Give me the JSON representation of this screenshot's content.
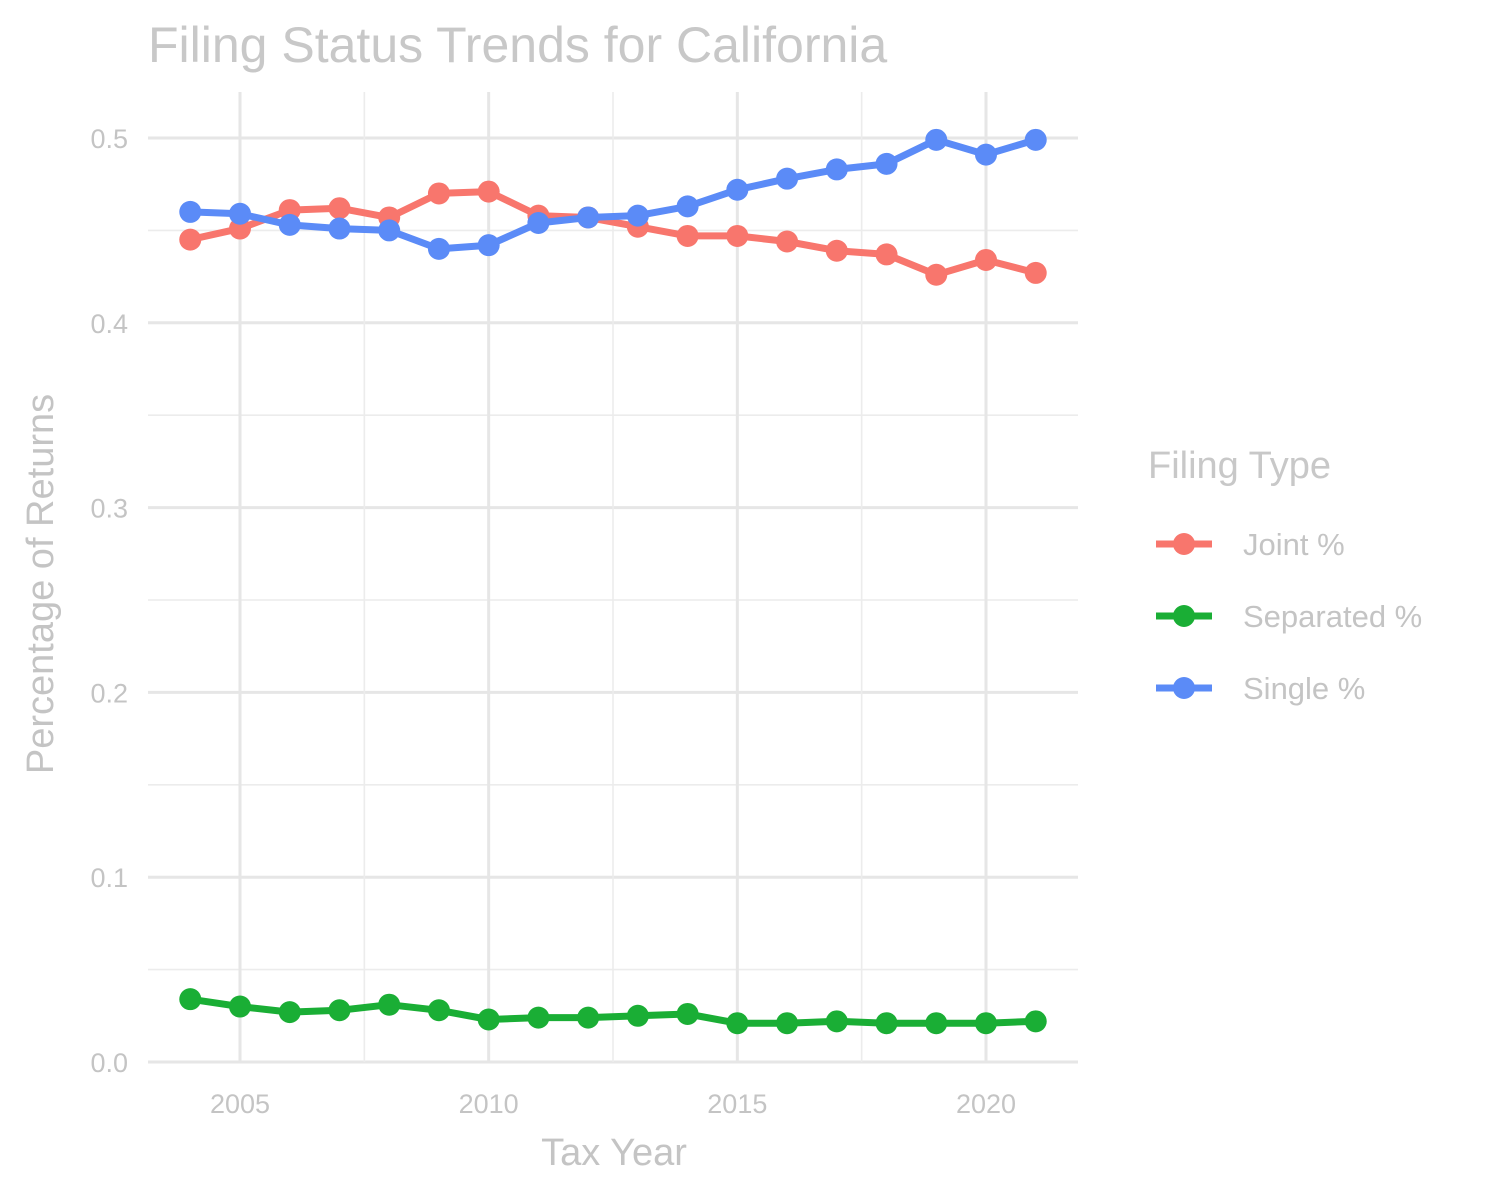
{
  "chart_data": {
    "type": "line",
    "title": "Filing Status Trends for California",
    "xlabel": "Tax Year",
    "ylabel": "Percentage of Returns",
    "x": [
      2004,
      2005,
      2006,
      2007,
      2008,
      2009,
      2010,
      2011,
      2012,
      2013,
      2014,
      2015,
      2016,
      2017,
      2018,
      2019,
      2020,
      2021
    ],
    "xlim": [
      2003.15,
      2021.85
    ],
    "ylim": [
      0,
      0.5
    ],
    "x_ticks": [
      2005,
      2010,
      2015,
      2020
    ],
    "x_tick_labels": [
      "2005",
      "2010",
      "2015",
      "2020"
    ],
    "y_ticks": [
      0.0,
      0.1,
      0.2,
      0.3,
      0.4,
      0.5
    ],
    "y_tick_labels": [
      "0.0",
      "0.1",
      "0.2",
      "0.3",
      "0.4",
      "0.5"
    ],
    "grid": true,
    "legend": {
      "title": "Filing Type",
      "placement": "right"
    },
    "series": [
      {
        "name": "Joint %",
        "color": "#F8766D",
        "values": [
          0.445,
          0.451,
          0.461,
          0.462,
          0.457,
          0.47,
          0.471,
          0.458,
          0.457,
          0.452,
          0.447,
          0.447,
          0.444,
          0.439,
          0.437,
          0.426,
          0.434,
          0.427
        ]
      },
      {
        "name": "Separated %",
        "color": "#1AAE35",
        "values": [
          0.034,
          0.03,
          0.027,
          0.028,
          0.031,
          0.028,
          0.023,
          0.024,
          0.024,
          0.025,
          0.026,
          0.021,
          0.021,
          0.022,
          0.021,
          0.021,
          0.021,
          0.022
        ]
      },
      {
        "name": "Single %",
        "color": "#5B8BF7",
        "values": [
          0.46,
          0.459,
          0.453,
          0.451,
          0.45,
          0.44,
          0.442,
          0.454,
          0.457,
          0.458,
          0.463,
          0.472,
          0.478,
          0.483,
          0.486,
          0.499,
          0.491,
          0.499
        ]
      }
    ]
  }
}
